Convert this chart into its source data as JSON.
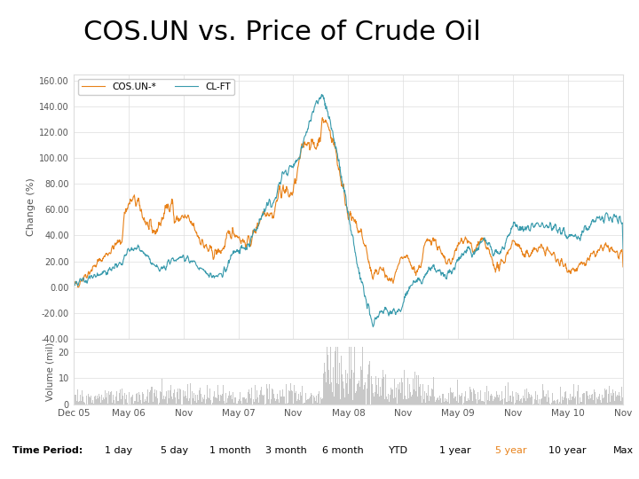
{
  "title": "COS.UN vs. Price of Crude Oil",
  "title_fontsize": 22,
  "cos_color": "#E8821A",
  "oil_color": "#3A9BAD",
  "volume_color": "#C8C8C8",
  "legend_labels": [
    "COS.UN-*",
    "CL-FT"
  ],
  "ylabel_main": "Change (%)",
  "ylabel_volume": "Volume (mil)",
  "ylim_main": [
    -40,
    165
  ],
  "ylim_volume": [
    0,
    25
  ],
  "yticks_main": [
    -40,
    -20,
    0,
    20,
    40,
    60,
    80,
    100,
    120,
    140,
    160
  ],
  "yticks_volume": [
    0,
    10,
    20
  ],
  "xtick_labels": [
    "Dec 05",
    "May 06",
    "Nov",
    "May 07",
    "Nov",
    "May 08",
    "Nov",
    "May 09",
    "Nov",
    "May 10",
    "Nov"
  ],
  "time_period_labels": [
    "1 day",
    "5 day",
    "1 month",
    "3 month",
    "6 month",
    "YTD",
    "1 year",
    "5 year",
    "10 year",
    "Max"
  ],
  "time_period_highlight": 7,
  "time_period_highlight_color": "#E8821A",
  "bg_color": "#FFFFFF",
  "grid_color": "#DDDDDD",
  "n_points": 1500
}
